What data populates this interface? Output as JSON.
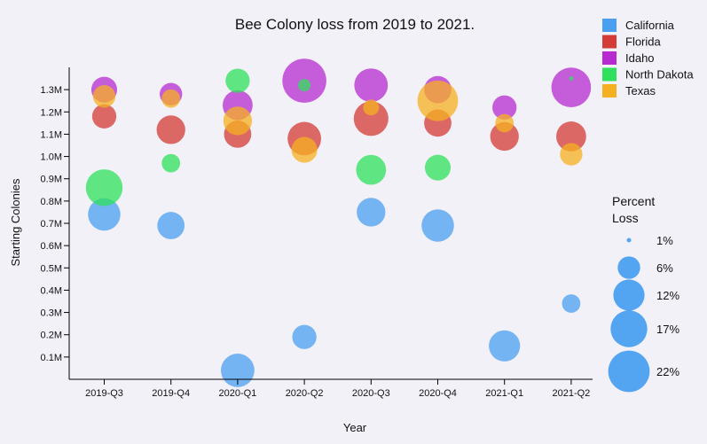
{
  "chart_data": {
    "type": "scatter",
    "title": "Bee Colony loss from 2019 to 2021.",
    "xlabel": "Year",
    "ylabel": "Starting Colonies",
    "categories": [
      "2019-Q3",
      "2019-Q4",
      "2020-Q1",
      "2020-Q2",
      "2020-Q3",
      "2020-Q4",
      "2021-Q1",
      "2021-Q2"
    ],
    "ylim": [
      0,
      1.4
    ],
    "y_unit": "M",
    "yticks": [
      "0.1M",
      "0.2M",
      "0.3M",
      "0.4M",
      "0.5M",
      "0.6M",
      "0.7M",
      "0.8M",
      "0.9M",
      "1.0M",
      "1.1M",
      "1.2M",
      "1.3M"
    ],
    "size_legend": {
      "title_lines": [
        "Percent",
        "Loss"
      ],
      "entries": [
        {
          "label": "1%",
          "value": 1
        },
        {
          "label": "6%",
          "value": 6
        },
        {
          "label": "12%",
          "value": 12
        },
        {
          "label": "17%",
          "value": 17
        },
        {
          "label": "22%",
          "value": 22
        }
      ]
    },
    "legend_placement": "top-right",
    "series": [
      {
        "name": "California",
        "color": "#4a9ff0",
        "values": [
          0.74,
          0.69,
          0.04,
          0.19,
          0.75,
          0.69,
          0.15,
          0.34
        ],
        "loss": [
          13,
          9,
          14,
          7,
          10,
          13,
          12,
          4
        ]
      },
      {
        "name": "Florida",
        "color": "#d43a36",
        "values": [
          1.18,
          1.12,
          1.1,
          1.08,
          1.17,
          1.15,
          1.09,
          1.09
        ],
        "loss": [
          7,
          10,
          9,
          14,
          15,
          9,
          10,
          11
        ]
      },
      {
        "name": "Idaho",
        "color": "#b62ad0",
        "values": [
          1.3,
          1.28,
          1.23,
          1.34,
          1.32,
          1.3,
          1.22,
          1.31
        ],
        "loss": [
          8,
          6,
          11,
          25,
          14,
          9,
          7,
          20
        ]
      },
      {
        "name": "North Dakota",
        "color": "#2fe05c",
        "values": [
          0.86,
          0.97,
          1.34,
          1.32,
          0.94,
          0.95,
          null,
          1.35
        ],
        "loss": [
          17,
          4,
          7,
          2,
          11,
          8,
          null,
          1
        ]
      },
      {
        "name": "Texas",
        "color": "#f5b022",
        "values": [
          1.27,
          1.26,
          1.16,
          1.03,
          1.22,
          1.25,
          1.15,
          1.01
        ],
        "loss": [
          6,
          4,
          10,
          8,
          3,
          21,
          4,
          6
        ]
      }
    ]
  }
}
